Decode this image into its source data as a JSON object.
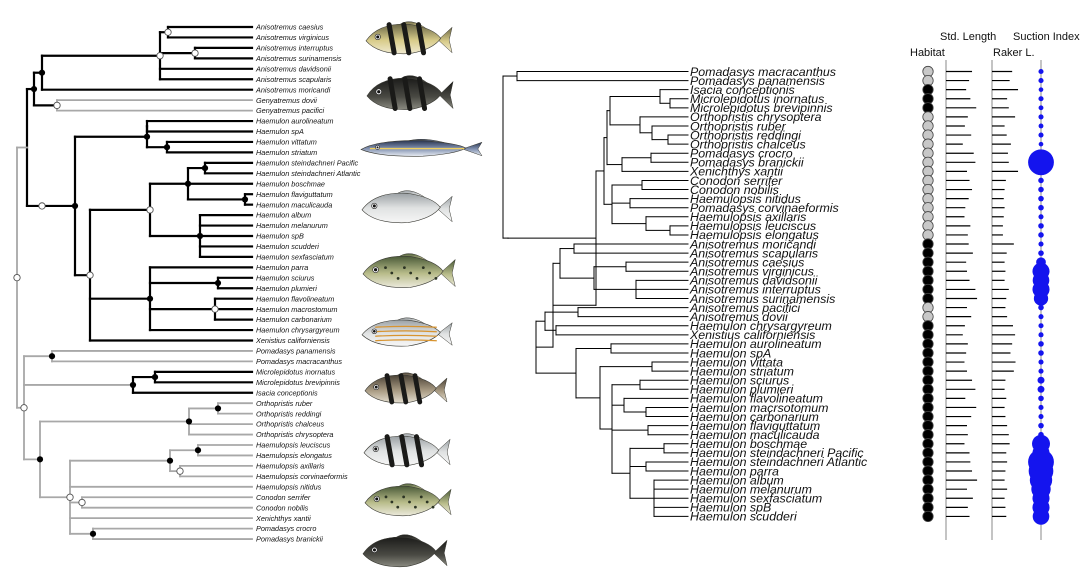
{
  "left_tree": {
    "tips": [
      {
        "label": "Anisotremus caesius",
        "group": "black"
      },
      {
        "label": "Anisotremus virginicus",
        "group": "black"
      },
      {
        "label": "Anisotremus interruptus",
        "group": "black"
      },
      {
        "label": "Anisotremus surinamensis",
        "group": "black"
      },
      {
        "label": "Anisotremus davidsonii",
        "group": "black"
      },
      {
        "label": "Anisotremus scapularis",
        "group": "black"
      },
      {
        "label": "Anisotremus moricandi",
        "group": "black"
      },
      {
        "label": "Genyatremus dovii",
        "group": "gray"
      },
      {
        "label": "Genyatremus pacifici",
        "group": "gray"
      },
      {
        "label": "Haemulon aurolineatum",
        "group": "black"
      },
      {
        "label": "Haemulon spA",
        "group": "black"
      },
      {
        "label": "Haemulon vittatum",
        "group": "black"
      },
      {
        "label": "Haemulon striatum",
        "group": "black"
      },
      {
        "label": "Haemulon steindachneri Pacific",
        "group": "black"
      },
      {
        "label": "Haemulon steindachneri Atlantic",
        "group": "black"
      },
      {
        "label": "Haemulon boschmae",
        "group": "black"
      },
      {
        "label": "Haemulon flaviguttatum",
        "group": "black"
      },
      {
        "label": "Haemulon maculicauda",
        "group": "black"
      },
      {
        "label": "Haemulon album",
        "group": "black"
      },
      {
        "label": "Haemulon melanurum",
        "group": "black"
      },
      {
        "label": "Haemulon spB",
        "group": "black"
      },
      {
        "label": "Haemulon scudderi",
        "group": "black"
      },
      {
        "label": "Haemulon sexfasciatum",
        "group": "black"
      },
      {
        "label": "Haemulon parra",
        "group": "black"
      },
      {
        "label": "Haemulon sciurus",
        "group": "black"
      },
      {
        "label": "Haemulon plumieri",
        "group": "black"
      },
      {
        "label": "Haemulon flavolineatum",
        "group": "black"
      },
      {
        "label": "Haemulon macrostomum",
        "group": "black"
      },
      {
        "label": "Haemulon carbonarium",
        "group": "black"
      },
      {
        "label": "Haemulon chrysargyreum",
        "group": "black"
      },
      {
        "label": "Xenistius californiensis",
        "group": "black"
      },
      {
        "label": "Pomadasys panamensis",
        "group": "gray"
      },
      {
        "label": "Pomadasys macracanthus",
        "group": "gray"
      },
      {
        "label": "Microlepidotus inornatus",
        "group": "black"
      },
      {
        "label": "Microlepidotus brevipinnis",
        "group": "black"
      },
      {
        "label": "Isacia conceptionis",
        "group": "black"
      },
      {
        "label": "Orthopristis ruber",
        "group": "gray"
      },
      {
        "label": "Orthopristis reddingi",
        "group": "gray"
      },
      {
        "label": "Orthopristis chalceus",
        "group": "gray"
      },
      {
        "label": "Orthopristis chrysoptera",
        "group": "gray"
      },
      {
        "label": "Haemulopsis leuciscus",
        "group": "gray"
      },
      {
        "label": "Haemulopsis elongatus",
        "group": "gray"
      },
      {
        "label": "Haemulopsis axillaris",
        "group": "gray"
      },
      {
        "label": "Haemulopsis corvinaeformis",
        "group": "gray"
      },
      {
        "label": "Haemulopsis nitidus",
        "group": "gray"
      },
      {
        "label": "Conodon serrifer",
        "group": "gray"
      },
      {
        "label": "Conodon nobilis",
        "group": "gray"
      },
      {
        "label": "Xenichthys xantii",
        "group": "gray"
      },
      {
        "label": "Pomadasys crocro",
        "group": "gray"
      },
      {
        "label": "Pomadasys branickii",
        "group": "gray"
      }
    ]
  },
  "right_tree": {
    "tips": [
      {
        "label": "Pomadasys macracanthus",
        "habitat": "gray",
        "std_length": 0.62,
        "raker": 0.48,
        "suction": 0.1
      },
      {
        "label": "Pomadasys panamensis",
        "habitat": "gray",
        "std_length": 0.55,
        "raker": 0.42,
        "suction": 0.1
      },
      {
        "label": "Isacia conceptionis",
        "habitat": "black",
        "std_length": 0.48,
        "raker": 0.62,
        "suction": 0.08
      },
      {
        "label": "Microlepidotus inornatus",
        "habitat": "black",
        "std_length": 0.58,
        "raker": 0.36,
        "suction": 0.1
      },
      {
        "label": "Microlepidotus brevipinnis",
        "habitat": "black",
        "std_length": 0.72,
        "raker": 0.4,
        "suction": 0.09
      },
      {
        "label": "Orthopristis chrysoptera",
        "habitat": "gray",
        "std_length": 0.52,
        "raker": 0.55,
        "suction": 0.1
      },
      {
        "label": "Orthopristis ruber",
        "habitat": "gray",
        "std_length": 0.45,
        "raker": 0.3,
        "suction": 0.09
      },
      {
        "label": "Orthopristis reddingi",
        "habitat": "gray",
        "std_length": 0.6,
        "raker": 0.35,
        "suction": 0.1
      },
      {
        "label": "Orthopristis chalceus",
        "habitat": "gray",
        "std_length": 0.4,
        "raker": 0.45,
        "suction": 0.08
      },
      {
        "label": "Pomadasys crocro",
        "habitat": "gray",
        "std_length": 0.66,
        "raker": 0.38,
        "suction": 0.12
      },
      {
        "label": "Pomadasys branickii",
        "habitat": "gray",
        "std_length": 0.7,
        "raker": 0.4,
        "suction": 1.0
      },
      {
        "label": "Xenichthys xantii",
        "habitat": "gray",
        "std_length": 0.5,
        "raker": 0.62,
        "suction": 0.15
      },
      {
        "label": "Conodon serrifer",
        "habitat": "gray",
        "std_length": 0.56,
        "raker": 0.33,
        "suction": 0.12
      },
      {
        "label": "Conodon nobilis",
        "habitat": "gray",
        "std_length": 0.62,
        "raker": 0.3,
        "suction": 0.12
      },
      {
        "label": "Haemulopsis nitidus",
        "habitat": "gray",
        "std_length": 0.54,
        "raker": 0.28,
        "suction": 0.12
      },
      {
        "label": "Pomadasys corvinaeformis",
        "habitat": "gray",
        "std_length": 0.46,
        "raker": 0.3,
        "suction": 0.12
      },
      {
        "label": "Haemulopsis axillaris",
        "habitat": "gray",
        "std_length": 0.44,
        "raker": 0.28,
        "suction": 0.1
      },
      {
        "label": "Haemulopsis leuciscus",
        "habitat": "gray",
        "std_length": 0.58,
        "raker": 0.26,
        "suction": 0.12
      },
      {
        "label": "Haemulopsis elongatus",
        "habitat": "gray",
        "std_length": 0.52,
        "raker": 0.26,
        "suction": 0.12
      },
      {
        "label": "Anisotremus moricandi",
        "habitat": "black",
        "std_length": 0.54,
        "raker": 0.52,
        "suction": 0.1
      },
      {
        "label": "Anisotremus scapularis",
        "habitat": "black",
        "std_length": 0.64,
        "raker": 0.35,
        "suction": 0.12
      },
      {
        "label": "Anisotremus caesius",
        "habitat": "black",
        "std_length": 0.48,
        "raker": 0.3,
        "suction": 0.3
      },
      {
        "label": "Anisotremus virginicus",
        "habitat": "black",
        "std_length": 0.5,
        "raker": 0.32,
        "suction": 0.62
      },
      {
        "label": "Anisotremus davidsonii",
        "habitat": "black",
        "std_length": 0.56,
        "raker": 0.3,
        "suction": 0.6
      },
      {
        "label": "Anisotremus interruptus",
        "habitat": "black",
        "std_length": 0.7,
        "raker": 0.4,
        "suction": 0.62
      },
      {
        "label": "Anisotremus surinamensis",
        "habitat": "black",
        "std_length": 0.74,
        "raker": 0.34,
        "suction": 0.5
      },
      {
        "label": "Anisotremus pacifici",
        "habitat": "gray",
        "std_length": 0.5,
        "raker": 0.32,
        "suction": 0.12
      },
      {
        "label": "Anisotremus dovii",
        "habitat": "gray",
        "std_length": 0.6,
        "raker": 0.36,
        "suction": 0.1
      },
      {
        "label": "Haemulon chrysargyreum",
        "habitat": "black",
        "std_length": 0.45,
        "raker": 0.5,
        "suction": 0.1
      },
      {
        "label": "Xenistius californiensis",
        "habitat": "black",
        "std_length": 0.4,
        "raker": 0.55,
        "suction": 0.1
      },
      {
        "label": "Haemulon aurolineatum",
        "habitat": "black",
        "std_length": 0.52,
        "raker": 0.48,
        "suction": 0.12
      },
      {
        "label": "Haemulon spA",
        "habitat": "black",
        "std_length": 0.48,
        "raker": 0.44,
        "suction": 0.12
      },
      {
        "label": "Haemulon vittata",
        "habitat": "black",
        "std_length": 0.44,
        "raker": 0.56,
        "suction": 0.1
      },
      {
        "label": "Haemulon striatum",
        "habitat": "black",
        "std_length": 0.5,
        "raker": 0.52,
        "suction": 0.1
      },
      {
        "label": "Haemulon sciurus",
        "habitat": "black",
        "std_length": 0.62,
        "raker": 0.32,
        "suction": 0.18
      },
      {
        "label": "Haemulon plumieri",
        "habitat": "black",
        "std_length": 0.7,
        "raker": 0.3,
        "suction": 0.18
      },
      {
        "label": "Haemulon flavolineatum",
        "habitat": "black",
        "std_length": 0.46,
        "raker": 0.34,
        "suction": 0.12
      },
      {
        "label": "Haemulon macrsotomum",
        "habitat": "black",
        "std_length": 0.72,
        "raker": 0.3,
        "suction": 0.1
      },
      {
        "label": "Haemulon carbonarium",
        "habitat": "black",
        "std_length": 0.6,
        "raker": 0.32,
        "suction": 0.1
      },
      {
        "label": "Haemulon flaviguttatum",
        "habitat": "black",
        "std_length": 0.5,
        "raker": 0.36,
        "suction": 0.12
      },
      {
        "label": "Haemulon maculicauda",
        "habitat": "black",
        "std_length": 0.52,
        "raker": 0.4,
        "suction": 0.12
      },
      {
        "label": "Haemulon boschmae",
        "habitat": "black",
        "std_length": 0.44,
        "raker": 0.42,
        "suction": 0.66
      },
      {
        "label": "Haemulon steindachneri Pacific",
        "habitat": "black",
        "std_length": 0.56,
        "raker": 0.34,
        "suction": 0.62
      },
      {
        "label": "Haemulon steindachneri Atlantic",
        "habitat": "black",
        "std_length": 0.58,
        "raker": 0.36,
        "suction": 1.0
      },
      {
        "label": "Haemulon parra",
        "habitat": "black",
        "std_length": 0.62,
        "raker": 0.32,
        "suction": 0.95
      },
      {
        "label": "Haemulon album",
        "habitat": "black",
        "std_length": 0.74,
        "raker": 0.3,
        "suction": 0.85
      },
      {
        "label": "Haemulon melanurum",
        "habitat": "black",
        "std_length": 0.5,
        "raker": 0.36,
        "suction": 0.72
      },
      {
        "label": "Haemulon sexfasciatum",
        "habitat": "black",
        "std_length": 0.64,
        "raker": 0.3,
        "suction": 0.62
      },
      {
        "label": "Haemulon spB",
        "habitat": "black",
        "std_length": 0.52,
        "raker": 0.32,
        "suction": 0.62
      },
      {
        "label": "Haemulon scudderi",
        "habitat": "black",
        "std_length": 0.56,
        "raker": 0.34,
        "suction": 0.6
      }
    ]
  },
  "columns": {
    "habitat": "Habitat",
    "std_length": "Std. Length",
    "raker": "Raker L.",
    "suction": "Suction Index"
  },
  "colors": {
    "habitat_black": "#000000",
    "habitat_gray": "#c8c8c8",
    "suction": "#1414ee",
    "branch_gray": "#a8a8a8",
    "branch_black": "#000000"
  }
}
